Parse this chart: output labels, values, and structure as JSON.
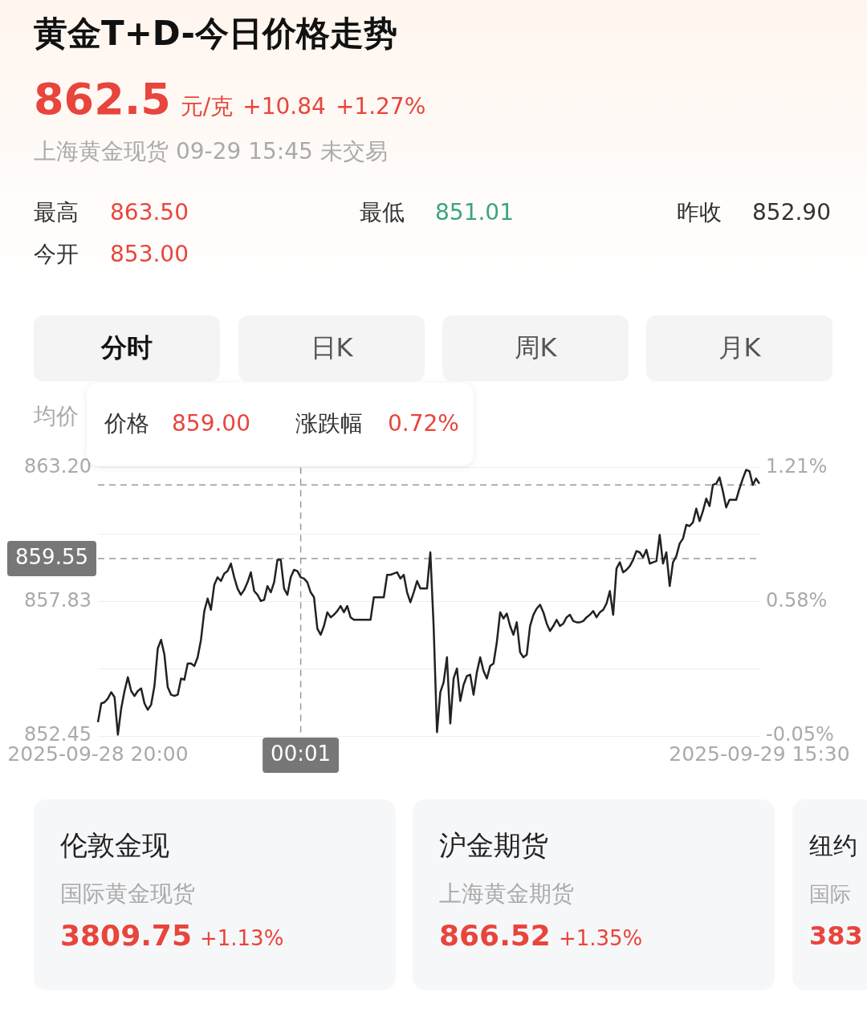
{
  "chart_data": {
    "type": "line",
    "title": "黄金T+D-今日价格走势",
    "annotations": [
      "862.5",
      "元/克",
      "+10.84",
      "+1.27%",
      "上海黄金现货 09-29 15:45 未交易",
      "最高",
      "863.50",
      "最低",
      "851.01",
      "昨收",
      "852.90",
      "今开",
      "853.00",
      "分时",
      "日K",
      "周K",
      "月K",
      "均价",
      "价格",
      "859.00",
      "涨跌幅",
      "0.72%",
      "伦敦金现",
      "国际黄金现货",
      "3809.75",
      "+1.13%",
      "沪金期货",
      "上海黄金期货",
      "866.52",
      "+1.35%",
      "纽约",
      "国际",
      "383"
    ],
    "categories": [
      "2025-09-28 20:00",
      null,
      null,
      null,
      null,
      null,
      null,
      null,
      null,
      null,
      null,
      null,
      null,
      null,
      null,
      null,
      null,
      null,
      null,
      null,
      null,
      null,
      null,
      null,
      null,
      null,
      null,
      null,
      null,
      null,
      null,
      null,
      null,
      null,
      null,
      null,
      null,
      null,
      null,
      null,
      null,
      null,
      null,
      null,
      null,
      null,
      null,
      null,
      null,
      null,
      null,
      null,
      null,
      null,
      null,
      null,
      null,
      null,
      null,
      null,
      null,
      "00:01",
      null,
      null,
      null,
      null,
      null,
      null,
      null,
      null,
      null,
      null,
      null,
      null,
      null,
      null,
      null,
      null,
      null,
      null,
      null,
      null,
      null,
      null,
      null,
      null,
      null,
      null,
      null,
      null,
      null,
      null,
      null,
      null,
      null,
      null,
      null,
      null,
      null,
      null,
      null,
      null,
      null,
      null,
      null,
      null,
      null,
      null,
      null,
      null,
      null,
      null,
      null,
      null,
      null,
      null,
      null,
      null,
      null,
      null,
      null,
      null,
      null,
      null,
      null,
      null,
      null,
      null,
      null,
      null,
      null,
      null,
      null,
      null,
      null,
      null,
      null,
      null,
      null,
      null,
      null,
      null,
      null,
      null,
      null,
      null,
      null,
      null,
      null,
      null,
      null,
      null,
      null,
      null,
      null,
      null,
      null,
      null,
      null,
      null,
      null,
      null,
      null,
      null,
      null,
      null,
      null,
      null,
      null,
      null,
      null,
      null,
      null,
      null,
      null,
      null,
      null,
      null,
      null,
      null,
      null,
      null,
      null,
      null,
      null,
      null,
      null,
      null,
      null,
      null,
      null,
      null,
      null,
      null,
      null,
      null,
      null,
      null,
      null,
      "2025-09-29 15:30"
    ],
    "values": [
      853.0,
      853.75,
      853.8,
      853.95,
      854.2,
      854.0,
      852.5,
      853.55,
      854.25,
      854.8,
      854.25,
      854.05,
      854.25,
      854.35,
      853.75,
      853.5,
      853.7,
      854.45,
      855.95,
      856.3,
      855.7,
      854.4,
      854.1,
      854.05,
      854.1,
      854.75,
      854.7,
      855.35,
      855.35,
      855.25,
      855.6,
      856.3,
      857.45,
      857.95,
      857.5,
      858.5,
      858.8,
      858.65,
      858.95,
      859.05,
      859.35,
      858.8,
      858.35,
      858.1,
      858.3,
      858.6,
      859.0,
      858.25,
      858.1,
      857.85,
      857.9,
      858.45,
      858.2,
      858.6,
      859.5,
      859.5,
      858.35,
      858.1,
      858.8,
      859.1,
      859.05,
      858.8,
      858.75,
      858.6,
      858.2,
      858.0,
      856.75,
      856.5,
      856.85,
      857.4,
      857.2,
      857.3,
      857.45,
      857.65,
      857.4,
      857.65,
      857.2,
      857.1,
      857.1,
      857.1,
      857.1,
      857.1,
      857.1,
      858.0,
      858.0,
      858.0,
      858.0,
      858.9,
      858.9,
      858.95,
      859.0,
      858.75,
      858.9,
      858.2,
      857.8,
      858.2,
      858.65,
      858.35,
      858.35,
      858.35,
      859.8,
      856.8,
      852.6,
      854.2,
      854.6,
      855.6,
      852.95,
      854.75,
      855.15,
      853.85,
      854.5,
      854.85,
      854.9,
      854.1,
      855.0,
      855.6,
      855.05,
      854.75,
      855.25,
      855.35,
      856.2,
      857.4,
      857.15,
      857.35,
      856.85,
      856.5,
      857.0,
      855.8,
      855.6,
      855.7,
      856.85,
      857.3,
      857.55,
      857.7,
      857.4,
      856.95,
      856.65,
      856.85,
      857.1,
      856.85,
      856.95,
      857.2,
      857.3,
      857.05,
      857.0,
      857.0,
      857.05,
      857.2,
      857.3,
      857.45,
      857.2,
      857.4,
      857.5,
      857.75,
      858.25,
      857.3,
      859.15,
      859.4,
      859.0,
      859.1,
      859.25,
      859.5,
      859.85,
      859.8,
      859.6,
      859.9,
      859.35,
      859.4,
      859.45,
      860.5,
      859.35,
      859.8,
      858.45,
      859.4,
      859.65,
      860.15,
      860.35,
      860.9,
      860.85,
      861.0,
      861.55,
      861.05,
      861.45,
      861.95,
      861.65,
      862.5,
      862.55,
      862.8,
      862.25,
      861.6,
      861.9,
      861.9,
      861.9,
      862.35,
      862.75,
      863.1,
      863.05,
      862.5,
      862.75,
      862.55
    ],
    "color": "#222222",
    "marker": "none",
    "line_style": "solid",
    "legend": false,
    "grid": "y",
    "ylim": [
      852.45,
      863.2
    ],
    "yticks": [
      {
        "value": 852.45,
        "label": "852.45"
      },
      {
        "value": 855.14,
        "label": null
      },
      {
        "value": 857.83,
        "label": "857.83"
      },
      {
        "value": 860.515,
        "label": null
      },
      {
        "value": 863.2,
        "label": "863.20"
      }
    ],
    "y2lim": [
      -0.05,
      1.21
    ],
    "y2ticks": [
      {
        "value": -0.05,
        "label": "-0.05%"
      },
      {
        "value": 0.58,
        "label": "0.58%"
      },
      {
        "value": 1.21,
        "label": "1.21%"
      }
    ],
    "ref_lines": [
      {
        "axis": "y",
        "value": 862.5,
        "label": null,
        "color": "#999999",
        "line_style": "dashed"
      },
      {
        "axis": "y",
        "value": 859.55,
        "label": "859.55",
        "color": "#999999",
        "line_style": "dashed"
      },
      {
        "axis": "x",
        "value": "00:01",
        "label": null,
        "color": "#999999",
        "line_style": "dashed"
      }
    ]
  }
}
